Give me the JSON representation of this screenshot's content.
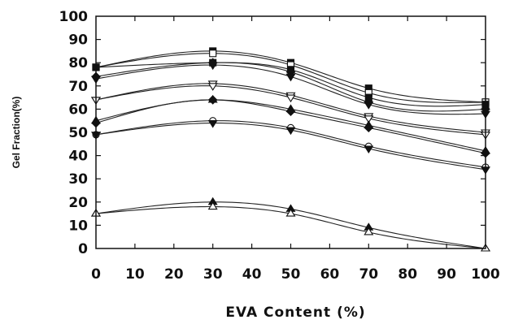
{
  "chart_data": {
    "type": "line",
    "title": "",
    "xlabel": "EVA  Content  (%)",
    "ylabel": "Gel Fraction(%)",
    "xlim": [
      0,
      100
    ],
    "ylim": [
      0,
      100
    ],
    "x_ticks": [
      "0",
      "10",
      "20",
      "30",
      "40",
      "50",
      "60",
      "70",
      "80",
      "90",
      "100"
    ],
    "y_ticks": [
      "0",
      "10",
      "20",
      "30",
      "40",
      "50",
      "60",
      "70",
      "80",
      "90",
      "100"
    ],
    "grid": false,
    "x": [
      0,
      30,
      50,
      70,
      100
    ],
    "series": [
      {
        "marker": "filled-square",
        "values": [
          78,
          85,
          80,
          69,
          63
        ]
      },
      {
        "marker": "open-square",
        "values": [
          78,
          84,
          79,
          67,
          63
        ]
      },
      {
        "marker": "filled-square",
        "values": [
          78,
          80,
          77,
          65,
          62
        ]
      },
      {
        "marker": "filled-diamond",
        "values": [
          74,
          80,
          76,
          63,
          60
        ]
      },
      {
        "marker": "filled-triangle-down",
        "values": [
          73,
          79,
          74,
          62,
          58
        ]
      },
      {
        "marker": "open-triangle-down",
        "values": [
          64,
          71,
          66,
          57,
          50
        ]
      },
      {
        "marker": "open-triangle-down",
        "values": [
          64,
          70,
          65,
          56,
          49
        ]
      },
      {
        "marker": "filled-triangle",
        "values": [
          55,
          64,
          60,
          53,
          42
        ]
      },
      {
        "marker": "filled-diamond",
        "values": [
          54,
          64,
          59,
          52,
          41
        ]
      },
      {
        "marker": "open-circle",
        "values": [
          49,
          55,
          52,
          44,
          35
        ]
      },
      {
        "marker": "filled-triangle-down",
        "values": [
          49,
          54,
          51,
          43,
          34
        ]
      },
      {
        "marker": "filled-triangle",
        "values": [
          15,
          20,
          17,
          9,
          0
        ]
      },
      {
        "marker": "open-triangle",
        "values": [
          15,
          18,
          15,
          7,
          0
        ]
      }
    ]
  }
}
